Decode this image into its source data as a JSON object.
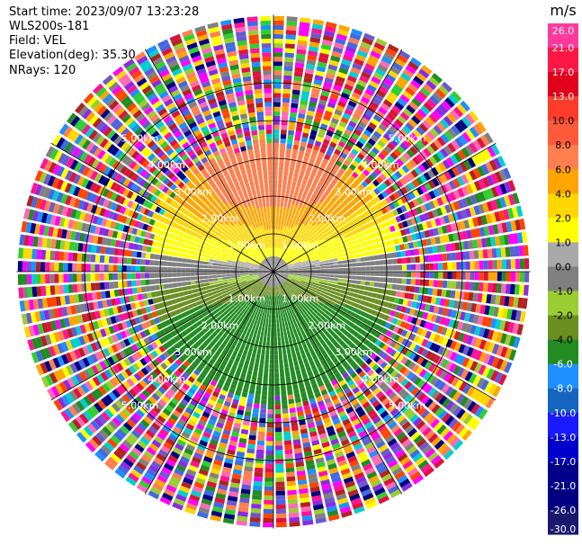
{
  "header": {
    "start_time": "Start time: 2023/09/07 13:23:28",
    "site": "WLS200s-181",
    "field": "Field: VEL",
    "elevation": "Elevation(deg): 35.30",
    "nrays": "NRays: 120"
  },
  "chart_data": {
    "type": "ppi-polar",
    "field": "VEL",
    "units": "m/s",
    "nrays": 120,
    "elevation_deg": 35.3,
    "range_rings_km": [
      1.0,
      2.0,
      3.0,
      4.0,
      5.0
    ],
    "ring_labels": [
      "1.00km",
      "2.00km",
      "3.00km",
      "4.00km",
      "5.00km"
    ],
    "azimuth_spokes_deg": [
      0,
      30,
      60,
      90,
      120,
      150,
      180,
      210,
      240,
      270,
      300,
      330
    ],
    "max_range_km": 6.8,
    "clean_range_km": 3.2,
    "colorbar": {
      "unit_label": "m/s",
      "ticks": [
        "26.0",
        "21.0",
        "17.0",
        "13.0",
        "10.0",
        "8.0",
        "6.0",
        "4.0",
        "2.0",
        "1.0",
        "0.0",
        "-1.0",
        "-2.0",
        "-4.0",
        "-6.0",
        "-8.0",
        "-10.0",
        "-13.0",
        "-17.0",
        "-21.0",
        "-26.0",
        "-30.0"
      ],
      "colors": [
        "#ff3a9c",
        "#ff1744",
        "#e0001c",
        "#ff3c2a",
        "#ff5a3a",
        "#ff7f50",
        "#ffa500",
        "#ffd700",
        "#ffff00",
        "#a9a9a9",
        "#808080",
        "#9acd32",
        "#6b8e23",
        "#228b22",
        "#1e90ff",
        "#1565c0",
        "#1a1aff",
        "#0000cd",
        "#00008b",
        "#000080",
        "#191970"
      ]
    }
  }
}
